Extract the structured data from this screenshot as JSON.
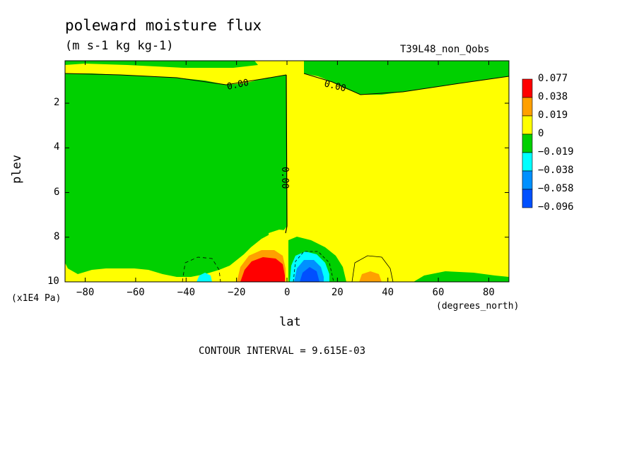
{
  "chart_data": {
    "type": "heatmap",
    "title": "poleward moisture flux",
    "subtitle": "(m s-1 kg kg-1)",
    "run_label": "T39L48_non_Qobs",
    "xlabel": "lat",
    "ylabel": "plev",
    "x_unit_label": "(degrees_north)",
    "y_unit_label": "(x1E4 Pa)",
    "contour_interval_label": "CONTOUR INTERVAL = 9.615E-03",
    "xlim": [
      -88,
      88
    ],
    "ylim": [
      0.1,
      10
    ],
    "y_inverted": true,
    "x_ticks": [
      -80,
      -60,
      -40,
      -20,
      0,
      20,
      40,
      60,
      80
    ],
    "y_ticks": [
      2,
      4,
      6,
      8,
      10
    ],
    "contour_labels": [
      "0.00",
      "0.00",
      "0.00"
    ],
    "colorbar": {
      "labels": [
        "0.077",
        "0.038",
        "0.019",
        "0",
        "-0.019",
        "-0.038",
        "-0.058",
        "-0.096"
      ],
      "colors": [
        "#ff0000",
        "#ffa000",
        "#ffff00",
        "#00d000",
        "#00ffff",
        "#0090ff",
        "#0050ff"
      ]
    },
    "colors": {
      "yellow": "#ffff00",
      "green": "#00d000",
      "orange": "#ffa000",
      "red": "#ff0000",
      "cyan": "#00ffff",
      "blue": "#0090ff",
      "darkblue": "#0050ff"
    }
  }
}
